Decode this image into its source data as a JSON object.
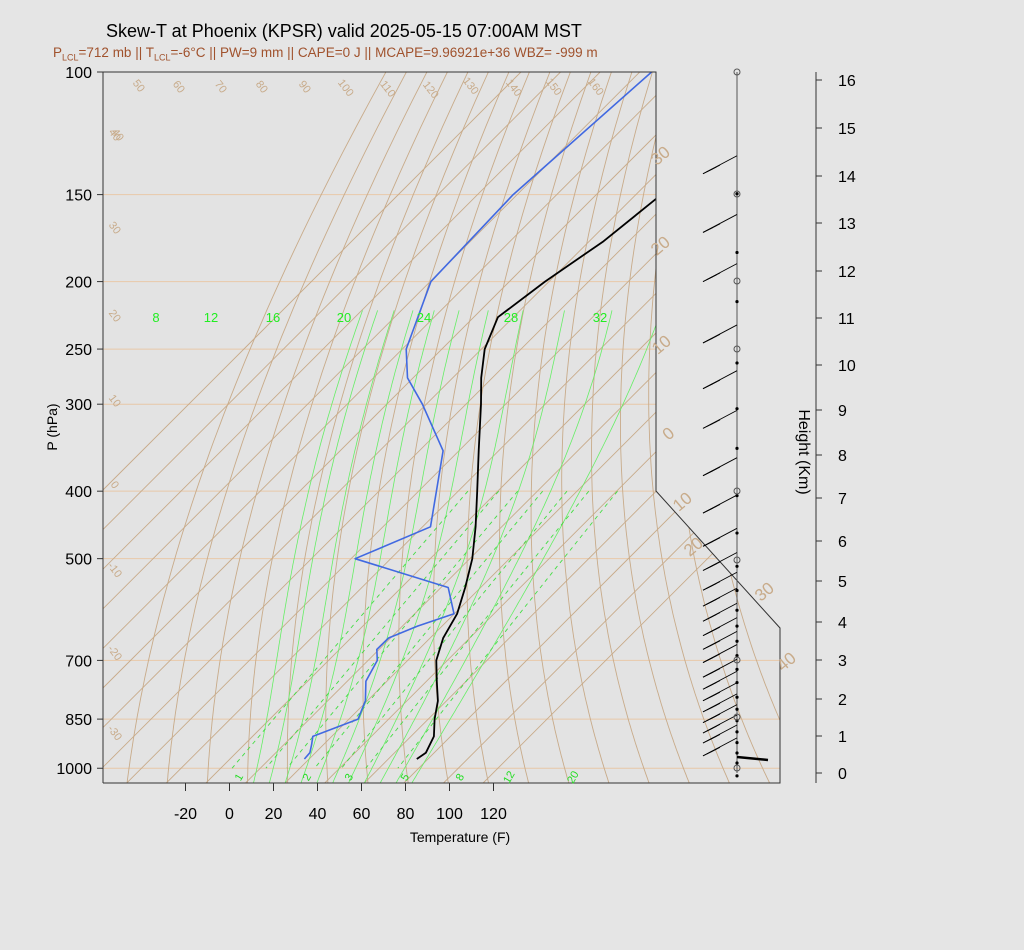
{
  "title": "Skew-T at Phoenix (KPSR) valid 2025-05-15 07:00AM MST",
  "subtitle": {
    "plcl_label": "P",
    "plcl_sub": "LCL",
    "plcl_value": "=712 mb || T",
    "tlcl_sub": "LCL",
    "rest": "=-6°C || PW=9 mm || CAPE=0 J || MCAPE=9.96921e+36 WBZ= -999 m"
  },
  "colors": {
    "temperature": "#000000",
    "dewpoint": "#4169e1",
    "isotherm": "#c8ab8a",
    "dry_adiabat": "#c8ab8a",
    "moist_adiabat": "#66ee66",
    "mixing_ratio": "#44dd44",
    "isobar": "#e8c8a8",
    "subtitle": "#a0522d"
  },
  "chart_data": {
    "type": "line",
    "xlabel": "Temperature (F)",
    "ylabel": "P (hPa)",
    "y2label": "Height (Km)",
    "x_ticks": [
      -20,
      0,
      20,
      40,
      60,
      80,
      100,
      120
    ],
    "y_ticks": [
      100,
      150,
      200,
      250,
      300,
      400,
      500,
      700,
      850,
      1000
    ],
    "height_ticks": [
      0,
      1,
      2,
      3,
      4,
      5,
      6,
      7,
      8,
      9,
      10,
      11,
      12,
      13,
      14,
      15,
      16
    ],
    "isotherm_labels_c": [
      -30,
      -20,
      -10,
      0,
      10,
      20,
      30,
      40
    ],
    "dry_adiabat_labels": [
      40,
      50,
      60,
      70,
      80,
      90,
      100,
      110,
      120,
      130,
      140,
      150,
      160
    ],
    "left_dry_labels": [
      40,
      30,
      20,
      10,
      0,
      -10,
      -20,
      -30
    ],
    "moist_adiabat_labels": [
      8,
      12,
      16,
      20,
      24,
      28,
      32
    ],
    "mixing_ratio_labels": [
      1,
      2,
      3,
      5,
      8,
      12,
      20
    ],
    "series": [
      {
        "name": "Temperature",
        "points": [
          [
            100,
            -55.9
          ],
          [
            125,
            -53.2
          ],
          [
            150,
            -53.6
          ],
          [
            175,
            -56.4
          ],
          [
            200,
            -61.0
          ],
          [
            225,
            -63.9
          ],
          [
            250,
            -59.2
          ],
          [
            275,
            -52.8
          ],
          [
            300,
            -46.2
          ],
          [
            350,
            -35.0
          ],
          [
            400,
            -25.2
          ],
          [
            450,
            -16.6
          ],
          [
            500,
            -9.4
          ],
          [
            550,
            -3.9
          ],
          [
            600,
            0.7
          ],
          [
            650,
            3.3
          ],
          [
            700,
            7.2
          ],
          [
            750,
            12.6
          ],
          [
            800,
            17.8
          ],
          [
            850,
            21.6
          ],
          [
            900,
            25.8
          ],
          [
            950,
            27.9
          ],
          [
            970,
            27.2
          ]
        ]
      },
      {
        "name": "Dewpoint",
        "points": [
          [
            100,
            -87.0
          ],
          [
            150,
            -91.0
          ],
          [
            200,
            -89.8
          ],
          [
            250,
            -79.0
          ],
          [
            275,
            -71.4
          ],
          [
            300,
            -61.0
          ],
          [
            350,
            -44.0
          ],
          [
            400,
            -35.5
          ],
          [
            450,
            -28.0
          ],
          [
            500,
            -39.0
          ],
          [
            550,
            -8.2
          ],
          [
            600,
            -0.1
          ],
          [
            625,
            -6.2
          ],
          [
            650,
            -10.5
          ],
          [
            675,
            -10.6
          ],
          [
            700,
            -7.7
          ],
          [
            750,
            -5.3
          ],
          [
            800,
            -0.5
          ],
          [
            850,
            2.3
          ],
          [
            900,
            -4.8
          ],
          [
            925,
            -3.0
          ],
          [
            950,
            -1.4
          ],
          [
            970,
            -1.2
          ]
        ]
      }
    ],
    "wind_barbs_hpa": [
      140,
      170,
      200,
      245,
      285,
      325,
      380,
      430,
      480,
      520,
      555,
      585,
      615,
      645,
      675,
      705,
      740,
      770,
      800,
      830,
      860,
      890,
      920,
      960
    ]
  }
}
